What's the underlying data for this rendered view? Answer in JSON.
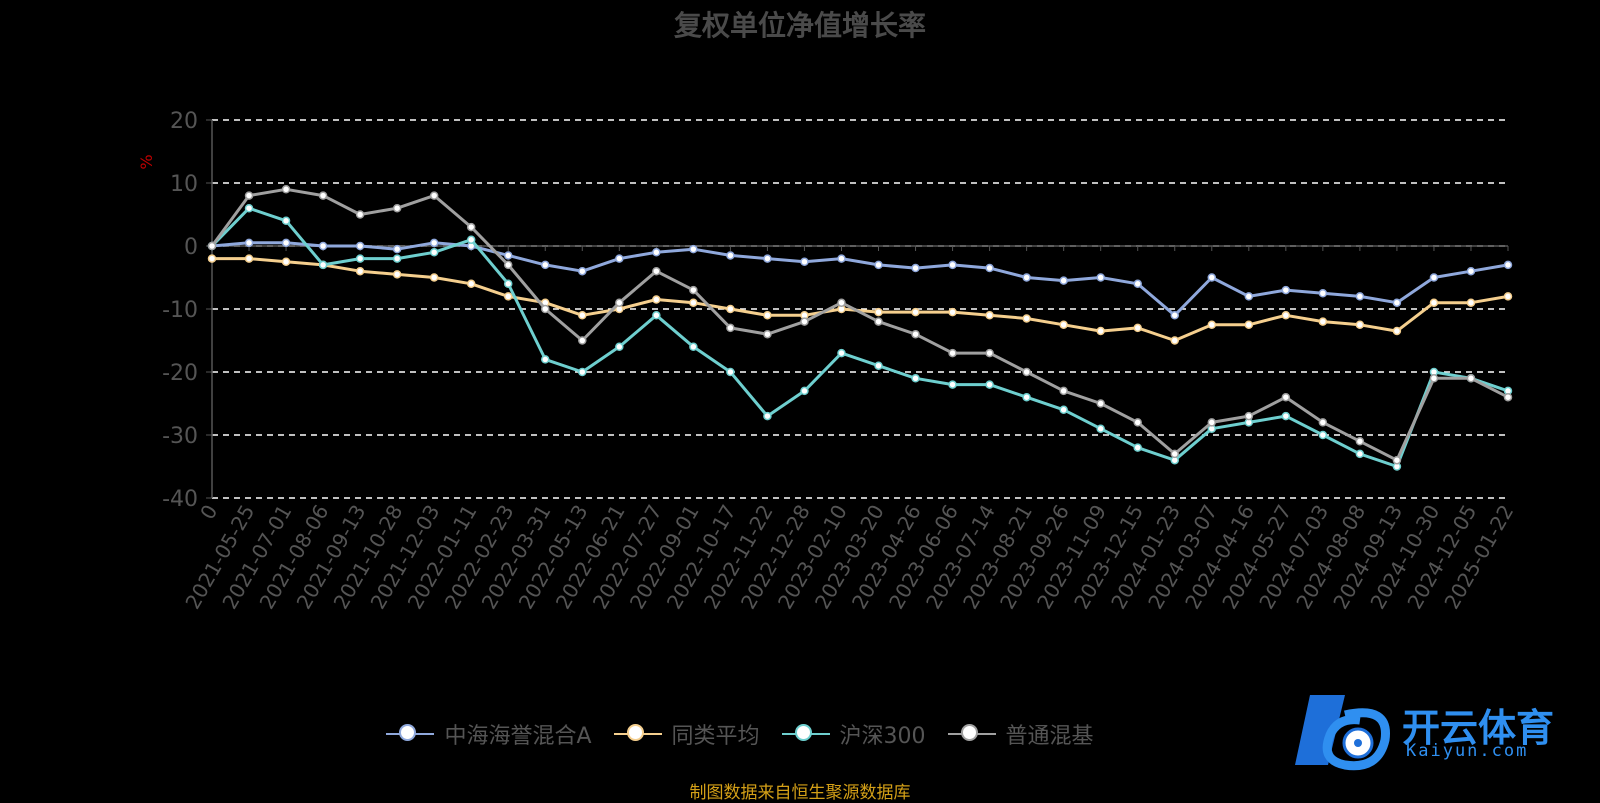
{
  "title": "复权单位净值增长率",
  "source_note": "制图数据来自恒生聚源数据库",
  "watermark": {
    "text": "开云体育",
    "sub": "Kaiyun.com"
  },
  "chart_data": {
    "type": "line",
    "title": "复权单位净值增长率",
    "ylabel": "%",
    "ylim": [
      -40,
      20
    ],
    "yticks": [
      20,
      10,
      0,
      -10,
      -20,
      -30,
      -40
    ],
    "grid": true,
    "legend_position": "bottom",
    "x": [
      "0",
      "2021-05-25",
      "2021-07-01",
      "2021-08-06",
      "2021-09-13",
      "2021-10-28",
      "2021-12-03",
      "2022-01-11",
      "2022-02-23",
      "2022-03-31",
      "2022-05-13",
      "2022-06-21",
      "2022-07-27",
      "2022-09-01",
      "2022-10-17",
      "2022-11-22",
      "2022-12-28",
      "2023-02-10",
      "2023-03-20",
      "2023-04-26",
      "2023-06-06",
      "2023-07-14",
      "2023-08-21",
      "2023-09-26",
      "2023-11-09",
      "2023-12-15",
      "2024-01-23",
      "2024-03-07",
      "2024-04-16",
      "2024-05-27",
      "2024-07-03",
      "2024-08-08",
      "2024-09-13",
      "2024-10-30",
      "2024-12-05",
      "2025-01-22"
    ],
    "series": [
      {
        "name": "中海海誉混合A",
        "color": "#8fa8dc",
        "values": [
          0,
          0.5,
          0.5,
          0,
          0,
          -0.5,
          0.5,
          0,
          -1.5,
          -3,
          -4,
          -2,
          -1,
          -0.5,
          -1.5,
          -2,
          -2.5,
          -2,
          -3,
          -3.5,
          -3,
          -3.5,
          -5,
          -5.5,
          -5,
          -6,
          -11,
          -5,
          -8,
          -7,
          -7.5,
          -8,
          -9,
          -5,
          -4,
          -3
        ]
      },
      {
        "name": "同类平均",
        "color": "#f5cf8e",
        "values": [
          -2,
          -2,
          -2.5,
          -3,
          -4,
          -4.5,
          -5,
          -6,
          -8,
          -9,
          -11,
          -10,
          -8.5,
          -9,
          -10,
          -11,
          -11,
          -10,
          -10.5,
          -10.5,
          -10.5,
          -11,
          -11.5,
          -12.5,
          -13.5,
          -13,
          -15,
          -12.5,
          -12.5,
          -11,
          -12,
          -12.5,
          -13.5,
          -9,
          -9,
          -8
        ]
      },
      {
        "name": "沪深300",
        "color": "#6ecfcf",
        "values": [
          0,
          6,
          4,
          -3,
          -2,
          -2,
          -1,
          1,
          -6,
          -18,
          -20,
          -16,
          -11,
          -16,
          -20,
          -27,
          -23,
          -17,
          -19,
          -21,
          -22,
          -22,
          -24,
          -26,
          -29,
          -32,
          -34,
          -29,
          -28,
          -27,
          -30,
          -33,
          -35,
          -20,
          -21,
          -23
        ]
      },
      {
        "name": "普通混基",
        "color": "#a0a0a0",
        "values": [
          0,
          8,
          9,
          8,
          5,
          6,
          8,
          3,
          -3,
          -10,
          -15,
          -9,
          -4,
          -7,
          -13,
          -14,
          -12,
          -9,
          -12,
          -14,
          -17,
          -17,
          -20,
          -23,
          -25,
          -28,
          -33,
          -28,
          -27,
          -24,
          -28,
          -31,
          -34,
          -21,
          -21,
          -24
        ]
      }
    ]
  }
}
